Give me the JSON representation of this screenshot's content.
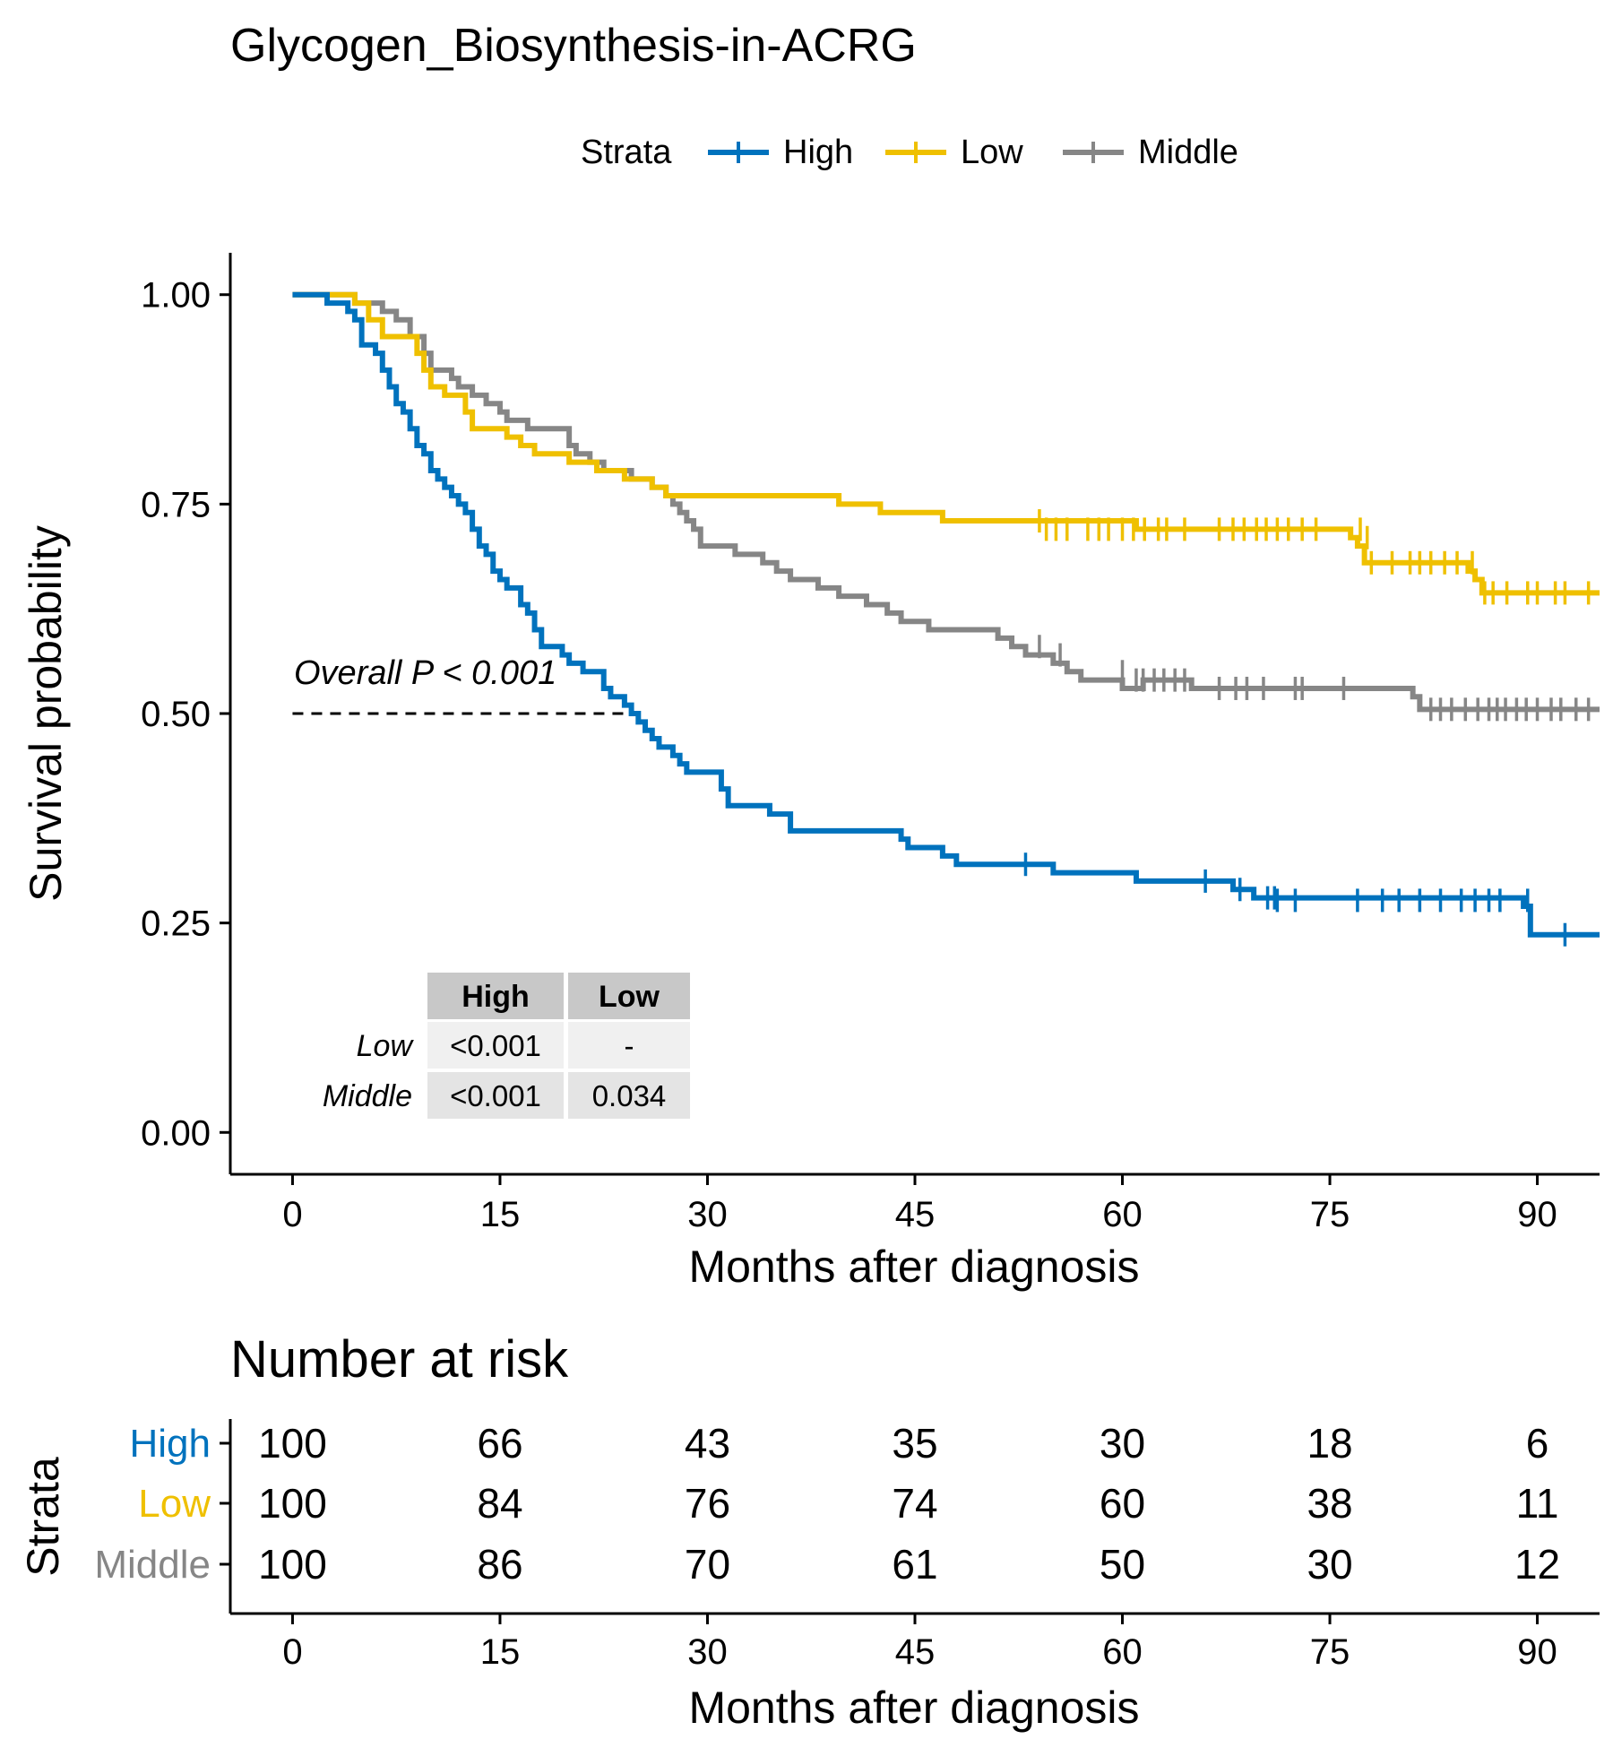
{
  "title": "Glycogen_Biosynthesis-in-ACRG",
  "legend": {
    "title": "Strata",
    "items": [
      {
        "label": "High",
        "color": "#0072BD"
      },
      {
        "label": "Low",
        "color": "#EFC000"
      },
      {
        "label": "Middle",
        "color": "#868686"
      }
    ]
  },
  "pvalue_text": "Overall P < 0.001",
  "pairwise_table": {
    "columns": [
      "High",
      "Low"
    ],
    "rows": [
      {
        "label": "Low",
        "cells": [
          "<0.001",
          "-"
        ]
      },
      {
        "label": "Middle",
        "cells": [
          "<0.001",
          "0.034"
        ]
      }
    ]
  },
  "risk_table": {
    "title": "Number at risk",
    "ylabel": "Strata",
    "xlabel": "Months after diagnosis",
    "time_points": [
      0,
      15,
      30,
      45,
      60,
      75,
      90
    ],
    "rows": [
      {
        "label": "High",
        "color": "#0072BD",
        "values": [
          100,
          66,
          43,
          35,
          30,
          18,
          6
        ]
      },
      {
        "label": "Low",
        "color": "#EFC000",
        "values": [
          100,
          84,
          76,
          74,
          60,
          38,
          11
        ]
      },
      {
        "label": "Middle",
        "color": "#868686",
        "values": [
          100,
          86,
          70,
          61,
          50,
          30,
          12
        ]
      }
    ]
  },
  "chart_data": {
    "type": "line",
    "title": "Glycogen_Biosynthesis-in-ACRG",
    "xlabel": "Months after diagnosis",
    "ylabel": "Survival probability",
    "xlim": [
      -4.5,
      94.5
    ],
    "ylim": [
      -0.05,
      1.05
    ],
    "x_ticks": [
      0,
      15,
      30,
      45,
      60,
      75,
      90
    ],
    "y_ticks": [
      0.0,
      0.25,
      0.5,
      0.75,
      1.0
    ],
    "y_tick_labels": [
      "0.00",
      "0.25",
      "0.50",
      "0.75",
      "1.00"
    ],
    "median_line": {
      "y": 0.5,
      "x_end": 24.4
    },
    "series": [
      {
        "name": "High",
        "color": "#0072BD",
        "steps": [
          [
            0,
            1.0
          ],
          [
            2.5,
            0.99
          ],
          [
            4,
            0.98
          ],
          [
            4.5,
            0.97
          ],
          [
            5,
            0.94
          ],
          [
            6,
            0.93
          ],
          [
            6.5,
            0.91
          ],
          [
            7,
            0.89
          ],
          [
            7.5,
            0.87
          ],
          [
            8,
            0.86
          ],
          [
            8.5,
            0.84
          ],
          [
            9,
            0.82
          ],
          [
            9.5,
            0.81
          ],
          [
            10,
            0.79
          ],
          [
            10.5,
            0.78
          ],
          [
            11,
            0.77
          ],
          [
            11.5,
            0.76
          ],
          [
            12,
            0.75
          ],
          [
            12.5,
            0.74
          ],
          [
            13,
            0.72
          ],
          [
            13.5,
            0.7
          ],
          [
            14,
            0.69
          ],
          [
            14.5,
            0.67
          ],
          [
            15,
            0.66
          ],
          [
            15.5,
            0.65
          ],
          [
            16.5,
            0.63
          ],
          [
            17,
            0.62
          ],
          [
            17.5,
            0.6
          ],
          [
            18,
            0.58
          ],
          [
            19.5,
            0.57
          ],
          [
            20,
            0.56
          ],
          [
            21,
            0.55
          ],
          [
            22.5,
            0.53
          ],
          [
            23,
            0.52
          ],
          [
            24,
            0.51
          ],
          [
            24.5,
            0.5
          ],
          [
            25,
            0.49
          ],
          [
            25.5,
            0.48
          ],
          [
            26,
            0.47
          ],
          [
            26.5,
            0.46
          ],
          [
            27.5,
            0.45
          ],
          [
            28,
            0.44
          ],
          [
            28.5,
            0.43
          ],
          [
            31,
            0.41
          ],
          [
            31.5,
            0.39
          ],
          [
            34.5,
            0.38
          ],
          [
            36,
            0.36
          ],
          [
            44,
            0.35
          ],
          [
            44.5,
            0.34
          ],
          [
            47,
            0.33
          ],
          [
            48,
            0.32
          ],
          [
            55,
            0.31
          ],
          [
            61,
            0.3
          ],
          [
            68,
            0.29
          ],
          [
            69.5,
            0.28
          ],
          [
            89,
            0.27
          ],
          [
            89.5,
            0.236
          ]
        ],
        "end": 94.5,
        "censor": [
          [
            53,
            0.32
          ],
          [
            66,
            0.3
          ],
          [
            68.5,
            0.29
          ],
          [
            70.5,
            0.28
          ],
          [
            71,
            0.28
          ],
          [
            71.2,
            0.277
          ],
          [
            72.5,
            0.277
          ],
          [
            77,
            0.277
          ],
          [
            78.8,
            0.277
          ],
          [
            80,
            0.277
          ],
          [
            81.5,
            0.277
          ],
          [
            83,
            0.277
          ],
          [
            84.5,
            0.277
          ],
          [
            85.5,
            0.277
          ],
          [
            86.5,
            0.277
          ],
          [
            87.3,
            0.277
          ],
          [
            89.3,
            0.277
          ],
          [
            92,
            0.236
          ]
        ]
      },
      {
        "name": "Low",
        "color": "#EFC000",
        "steps": [
          [
            0,
            1.0
          ],
          [
            4.5,
            0.99
          ],
          [
            5.5,
            0.97
          ],
          [
            6.5,
            0.95
          ],
          [
            9,
            0.93
          ],
          [
            9.5,
            0.91
          ],
          [
            10,
            0.89
          ],
          [
            11,
            0.88
          ],
          [
            12.5,
            0.86
          ],
          [
            13,
            0.84
          ],
          [
            15.5,
            0.83
          ],
          [
            16.5,
            0.82
          ],
          [
            17.5,
            0.81
          ],
          [
            20,
            0.8
          ],
          [
            22,
            0.79
          ],
          [
            24,
            0.78
          ],
          [
            26,
            0.77
          ],
          [
            27,
            0.76
          ],
          [
            39.5,
            0.75
          ],
          [
            42.5,
            0.74
          ],
          [
            47,
            0.73
          ],
          [
            61,
            0.72
          ],
          [
            76.5,
            0.71
          ],
          [
            77,
            0.7
          ],
          [
            77.5,
            0.68
          ],
          [
            85,
            0.67
          ],
          [
            85.5,
            0.66
          ],
          [
            86,
            0.644
          ]
        ],
        "end": 94.5,
        "censor": [
          [
            54,
            0.73
          ],
          [
            54.5,
            0.72
          ],
          [
            55.2,
            0.72
          ],
          [
            56,
            0.72
          ],
          [
            57.5,
            0.72
          ],
          [
            58.3,
            0.72
          ],
          [
            59,
            0.72
          ],
          [
            60,
            0.72
          ],
          [
            60.8,
            0.72
          ],
          [
            61.6,
            0.72
          ],
          [
            62.6,
            0.72
          ],
          [
            63.2,
            0.72
          ],
          [
            64.5,
            0.72
          ],
          [
            67,
            0.72
          ],
          [
            68,
            0.72
          ],
          [
            68.8,
            0.72
          ],
          [
            69.7,
            0.72
          ],
          [
            70.4,
            0.72
          ],
          [
            71.2,
            0.72
          ],
          [
            72,
            0.72
          ],
          [
            73,
            0.72
          ],
          [
            74,
            0.72
          ],
          [
            77.2,
            0.72
          ],
          [
            77.7,
            0.71
          ],
          [
            78,
            0.68
          ],
          [
            79.5,
            0.68
          ],
          [
            80.8,
            0.68
          ],
          [
            81.5,
            0.68
          ],
          [
            82.3,
            0.68
          ],
          [
            83.3,
            0.68
          ],
          [
            84.2,
            0.68
          ],
          [
            85.3,
            0.68
          ],
          [
            86.2,
            0.644
          ],
          [
            86.8,
            0.644
          ],
          [
            87.8,
            0.644
          ],
          [
            89.3,
            0.644
          ],
          [
            90,
            0.644
          ],
          [
            91.3,
            0.644
          ],
          [
            92,
            0.644
          ],
          [
            93.7,
            0.644
          ]
        ]
      },
      {
        "name": "Middle",
        "color": "#868686",
        "steps": [
          [
            0,
            1.0
          ],
          [
            4.5,
            0.99
          ],
          [
            6.5,
            0.98
          ],
          [
            7.5,
            0.97
          ],
          [
            8.5,
            0.95
          ],
          [
            9.5,
            0.93
          ],
          [
            10,
            0.91
          ],
          [
            11.5,
            0.9
          ],
          [
            12,
            0.89
          ],
          [
            13,
            0.88
          ],
          [
            14,
            0.87
          ],
          [
            15,
            0.86
          ],
          [
            15.5,
            0.85
          ],
          [
            17,
            0.84
          ],
          [
            20,
            0.82
          ],
          [
            20.5,
            0.81
          ],
          [
            21.5,
            0.8
          ],
          [
            22.5,
            0.79
          ],
          [
            24.5,
            0.78
          ],
          [
            26,
            0.77
          ],
          [
            27,
            0.76
          ],
          [
            27.5,
            0.75
          ],
          [
            28,
            0.74
          ],
          [
            28.5,
            0.73
          ],
          [
            29,
            0.72
          ],
          [
            29.5,
            0.7
          ],
          [
            32,
            0.69
          ],
          [
            34,
            0.68
          ],
          [
            35,
            0.67
          ],
          [
            36,
            0.66
          ],
          [
            38,
            0.65
          ],
          [
            39.5,
            0.64
          ],
          [
            41.5,
            0.63
          ],
          [
            43,
            0.62
          ],
          [
            44,
            0.61
          ],
          [
            46,
            0.6
          ],
          [
            51,
            0.59
          ],
          [
            52,
            0.58
          ],
          [
            53,
            0.57
          ],
          [
            55,
            0.56
          ],
          [
            56,
            0.55
          ],
          [
            57,
            0.54
          ],
          [
            60,
            0.53
          ],
          [
            61.5,
            0.54
          ],
          [
            65,
            0.53
          ],
          [
            81,
            0.52
          ],
          [
            81.5,
            0.505
          ]
        ],
        "end": 94.5,
        "censor": [
          [
            54,
            0.58
          ],
          [
            55.5,
            0.57
          ],
          [
            60,
            0.55
          ],
          [
            61,
            0.54
          ],
          [
            61.5,
            0.54
          ],
          [
            62.3,
            0.54
          ],
          [
            63,
            0.54
          ],
          [
            63.8,
            0.54
          ],
          [
            64.5,
            0.54
          ],
          [
            67,
            0.53
          ],
          [
            68.2,
            0.53
          ],
          [
            69,
            0.53
          ],
          [
            70.2,
            0.53
          ],
          [
            72.5,
            0.53
          ],
          [
            73,
            0.53
          ],
          [
            76,
            0.53
          ],
          [
            82.3,
            0.505
          ],
          [
            83,
            0.505
          ],
          [
            83.8,
            0.505
          ],
          [
            84.8,
            0.505
          ],
          [
            85.7,
            0.505
          ],
          [
            86.5,
            0.505
          ],
          [
            87.1,
            0.505
          ],
          [
            87.7,
            0.505
          ],
          [
            88.5,
            0.505
          ],
          [
            89.2,
            0.505
          ],
          [
            90,
            0.505
          ],
          [
            91,
            0.505
          ],
          [
            91.7,
            0.505
          ],
          [
            92.8,
            0.505
          ],
          [
            93.7,
            0.505
          ]
        ]
      }
    ],
    "grid": false,
    "legend_position": "top"
  }
}
